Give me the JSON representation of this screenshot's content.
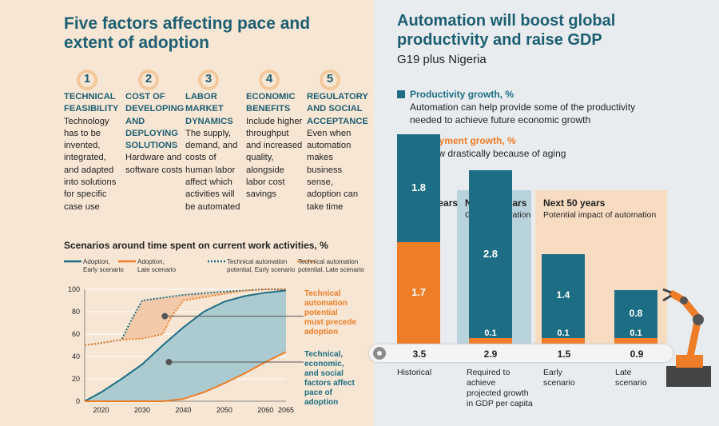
{
  "left_title_line1": "Five factors affecting pace and",
  "left_title_line2": "extent of adoption",
  "factors": [
    {
      "num": "1",
      "title": "TECHNICAL FEASIBILITY",
      "desc": "Technology has to be invented, integrated, and adapted into solutions for specific case use"
    },
    {
      "num": "2",
      "title": "COST OF DEVELOPING AND DEPLOYING SOLUTIONS",
      "desc": "Hardware and software costs"
    },
    {
      "num": "3",
      "title": "LABOR MARKET DYNAMICS",
      "desc": "The supply, demand, and costs of human labor affect which activities will be automated"
    },
    {
      "num": "4",
      "title": "ECONOMIC BENEFITS",
      "desc": "Include higher throughput and increased quality, alongside labor cost savings"
    },
    {
      "num": "5",
      "title": "REGULATORY AND SOCIAL ACCEPTANCE",
      "desc": "Even when automation makes business sense, adoption can take time"
    }
  ],
  "colors": {
    "teal": "#1d6e84",
    "orange": "#ee7d27",
    "title": "#1d5f72",
    "fill_teal": "#9ec6cf",
    "fill_orange": "#f1c39d"
  },
  "chart_data": [
    {
      "type": "line",
      "title": "Scenarios around time spent on current work activities, %",
      "xlabel": "",
      "ylabel": "",
      "xlim": [
        2016,
        2065
      ],
      "ylim": [
        0,
        100
      ],
      "xticks": [
        2020,
        2030,
        2040,
        2050,
        2060,
        2065
      ],
      "yticks": [
        0,
        20,
        40,
        60,
        80,
        100
      ],
      "grid": true,
      "legend_position": "top",
      "series": [
        {
          "name": "Adoption, Early scenario",
          "style": "solid",
          "color": "teal",
          "x": [
            2016,
            2020,
            2025,
            2030,
            2035,
            2040,
            2045,
            2050,
            2055,
            2060,
            2065
          ],
          "y": [
            0,
            8,
            20,
            33,
            50,
            66,
            80,
            89,
            94,
            97,
            99
          ]
        },
        {
          "name": "Adoption, Late scenario",
          "style": "solid",
          "color": "orange",
          "x": [
            2016,
            2020,
            2025,
            2030,
            2035,
            2040,
            2045,
            2050,
            2055,
            2060,
            2065
          ],
          "y": [
            0,
            0,
            0,
            0,
            0,
            2,
            8,
            16,
            25,
            35,
            44
          ]
        },
        {
          "name": "Technical automation potential, Early scenario",
          "style": "dotted",
          "color": "teal",
          "x": [
            2016,
            2020,
            2025,
            2027,
            2030,
            2032,
            2040,
            2050,
            2055,
            2060,
            2065
          ],
          "y": [
            50,
            52,
            55,
            70,
            90,
            91,
            95,
            98,
            99,
            100,
            100
          ]
        },
        {
          "name": "Technical automation potential, Late scenario",
          "style": "dotted",
          "color": "orange",
          "x": [
            2016,
            2020,
            2025,
            2030,
            2035,
            2037,
            2040,
            2045,
            2050,
            2055,
            2060,
            2065
          ],
          "y": [
            50,
            52,
            55,
            56,
            60,
            75,
            90,
            93,
            96,
            99,
            100,
            100
          ]
        }
      ],
      "annotations": [
        {
          "text": "Technical automation potential must precede adoption",
          "color": "orange"
        },
        {
          "text": "Technical, economic, and social factors affect pace of adoption",
          "color": "teal"
        }
      ]
    },
    {
      "type": "bar",
      "title": "Automation will boost global productivity and raise GDP",
      "subtitle": "G19 plus Nigeria",
      "stacked": true,
      "categories": [
        "Historical",
        "Required to achieve projected growth in GDP per capita",
        "Early scenario",
        "Late scenario"
      ],
      "series": [
        {
          "name": "Productivity growth, %",
          "values": [
            1.8,
            2.8,
            1.4,
            0.8
          ],
          "color": "teal"
        },
        {
          "name": "Employment growth, %",
          "values": [
            1.7,
            0.1,
            0.1,
            0.1
          ],
          "color": "orange"
        }
      ],
      "totals": [
        "3.5",
        "2.9",
        "1.5",
        "0.9"
      ]
    }
  ],
  "line_chart_text": {
    "legend": [
      "Adoption,\nEarly scenario",
      "Adoption,\nLate scenario",
      "Technical automation\npotential, Early scenario",
      "Technical automation\npotential, Late scenario"
    ],
    "ann1": "Technical\nautomation\npotential\nmust precede\nadoption",
    "ann2": "Technical,\neconomic,\nand social\nfactors affect\npace of\nadoption"
  },
  "right_title_line1": "Automation will boost global",
  "right_title_line2": "productivity and raise GDP",
  "legend_right": {
    "prod_title": "Productivity growth, %",
    "prod_desc": "Automation can help provide some of the productivity needed to achieve future economic growth",
    "emp_title": "Employment growth, %",
    "emp_desc": "will slow drastically because of aging"
  },
  "columns": {
    "c1_head": "Last 50 years",
    "c2_head": "Next 50 years",
    "c2_sub": "Growth aspiration",
    "c3_head": "Next 50 years",
    "c3_sub": "Potential impact of automation"
  },
  "bar_labels": [
    "1.8",
    "1.7",
    "2.8",
    "0.1",
    "1.4",
    "0.1",
    "0.8",
    "0.1"
  ],
  "categories_text": [
    "Historical",
    "Required to\nachieve\nprojected growth\nin GDP per capita",
    "Early\nscenario",
    "Late\nscenario"
  ]
}
